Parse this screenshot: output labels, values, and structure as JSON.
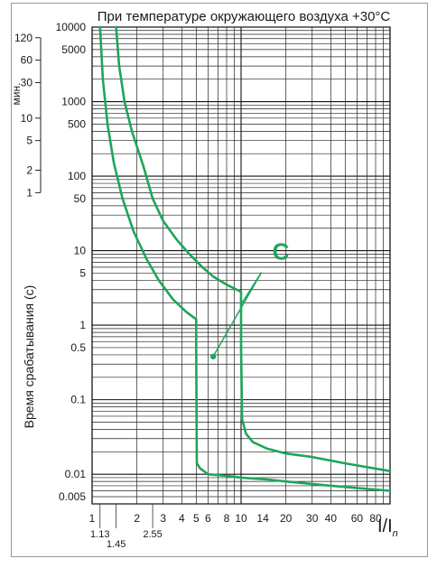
{
  "chart_data": {
    "type": "line",
    "title": "При температуре окружающего воздуха +30°C",
    "ylabel": "Время срабатывания (с)",
    "xlabel_main": "I/I",
    "xlabel_sub": "n",
    "minutes_label": "мин.",
    "curve_label": "C",
    "x_scale": "log",
    "y_scale": "log",
    "xlim": [
      1,
      100
    ],
    "ylim": [
      0.004,
      10000
    ],
    "x_ticks_top": [
      "1",
      "2",
      "3",
      "4",
      "5",
      "6",
      "8",
      "10",
      "14",
      "20",
      "30",
      "40",
      "60",
      "80"
    ],
    "x_tick_values_top": [
      1,
      2,
      3,
      4,
      5,
      6,
      8,
      10,
      14,
      20,
      30,
      40,
      60,
      80
    ],
    "x_ticks_bottom": [
      "1.13",
      "1.45",
      "2.55"
    ],
    "x_tick_values_bottom": [
      1.13,
      1.45,
      2.55
    ],
    "y_ticks": [
      "10000",
      "5000",
      "1000",
      "500",
      "100",
      "50",
      "10",
      "5",
      "1",
      "0.5",
      "0.1",
      "0.01",
      "0.005"
    ],
    "y_tick_values": [
      10000,
      5000,
      1000,
      500,
      100,
      50,
      10,
      5,
      1,
      0.5,
      0.1,
      0.01,
      0.005
    ],
    "minutes_ticks": [
      "120",
      "60",
      "30",
      "10",
      "5",
      "2",
      "1"
    ],
    "minutes_tick_values": [
      120,
      60,
      30,
      10,
      5,
      2,
      1
    ],
    "grid": true,
    "colors": {
      "curve": "#1ea55a",
      "grid": "#1a1a1a",
      "frame": "#999999"
    },
    "series": [
      {
        "name": "",
        "x": [
          1.13,
          1.18,
          1.27,
          1.4,
          1.6,
          1.9,
          2.3,
          2.8,
          3.5,
          4.3,
          5.0,
          5.0,
          5.05,
          5.3,
          6.0,
          8.0,
          10.0,
          15.0,
          20.0,
          40.0,
          100.0
        ],
        "y": [
          10000,
          2000,
          500,
          150,
          50,
          18,
          8,
          4,
          2.2,
          1.5,
          1.2,
          0.5,
          0.014,
          0.012,
          0.01,
          0.0095,
          0.009,
          0.0085,
          0.008,
          0.007,
          0.006
        ]
      },
      {
        "name": "",
        "x": [
          1.45,
          1.52,
          1.65,
          1.85,
          2.2,
          2.55,
          3.0,
          3.7,
          4.5,
          5.5,
          6.5,
          8.0,
          10.0,
          10.0,
          10.15,
          10.8,
          12.0,
          15.0,
          20.0,
          30.0,
          50.0,
          100.0
        ],
        "y": [
          10000,
          3000,
          1000,
          400,
          140,
          50,
          25,
          14,
          9,
          6,
          4.5,
          3.5,
          2.8,
          0.5,
          0.055,
          0.035,
          0.027,
          0.022,
          0.019,
          0.017,
          0.014,
          0.011
        ]
      }
    ],
    "annotations": [
      {
        "type": "pointer",
        "label_ref": "curve_label",
        "label_at": [
          14.5,
          8.0
        ],
        "to": [
          [
            10.0,
            1.9
          ],
          [
            6.5,
            0.38
          ]
        ]
      }
    ]
  }
}
